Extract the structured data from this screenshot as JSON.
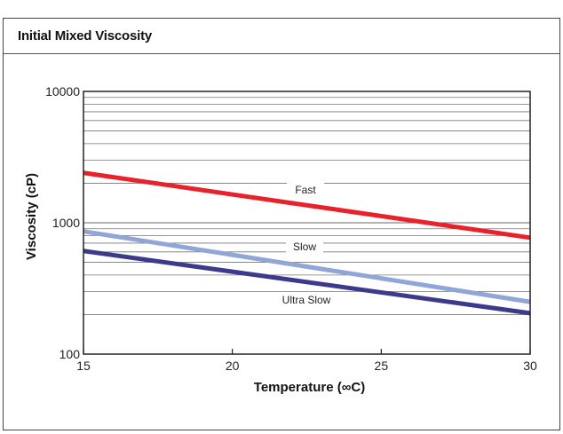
{
  "panel": {
    "title": "Initial Mixed Viscosity"
  },
  "chart_data": {
    "type": "line",
    "title": "Initial Mixed Viscosity",
    "xlabel": "Temperature (∞C)",
    "ylabel": "Viscosity (cP)",
    "xlim": [
      15,
      30
    ],
    "ylim": [
      100,
      10000
    ],
    "yscale": "log",
    "x_ticks": [
      15,
      20,
      25,
      30
    ],
    "y_ticks": [
      100,
      1000,
      10000
    ],
    "grid": "horizontal minor log gridlines",
    "series": [
      {
        "name": "Fast",
        "color": "#e8212b",
        "x": [
          15,
          30
        ],
        "y": [
          2400,
          770
        ]
      },
      {
        "name": "Slow",
        "color": "#8fa6d6",
        "x": [
          15,
          30
        ],
        "y": [
          860,
          250
        ]
      },
      {
        "name": "Ultra Slow",
        "color": "#3d3a8c",
        "x": [
          15,
          30
        ],
        "y": [
          610,
          205
        ]
      }
    ]
  }
}
